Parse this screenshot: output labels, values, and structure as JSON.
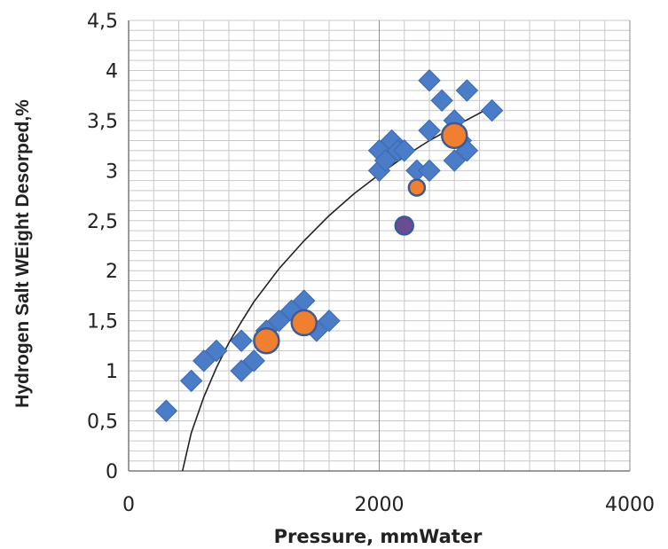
{
  "chart_data": {
    "type": "scatter",
    "title": "",
    "xlabel": "Pressure, mmWater",
    "ylabel": "Hydrogen Salt WEight Desorped,%",
    "xlim": [
      0,
      4000
    ],
    "ylim": [
      0,
      4.5
    ],
    "x_ticks": [
      {
        "value": 0,
        "label": "0"
      },
      {
        "value": 2000,
        "label": "2000"
      },
      {
        "value": 4000,
        "label": "4000"
      }
    ],
    "y_ticks": [
      {
        "value": 0,
        "label": "0"
      },
      {
        "value": 0.5,
        "label": "0,5"
      },
      {
        "value": 1,
        "label": "1"
      },
      {
        "value": 1.5,
        "label": "1,5"
      },
      {
        "value": 2,
        "label": "2"
      },
      {
        "value": 2.5,
        "label": "2,5"
      },
      {
        "value": 3,
        "label": "3"
      },
      {
        "value": 3.5,
        "label": "3,5"
      },
      {
        "value": 4,
        "label": "4"
      },
      {
        "value": 4.5,
        "label": "4,5"
      }
    ],
    "grid": true,
    "legend": "none",
    "series": [
      {
        "marker": "diamond",
        "color": "#4a7cc7",
        "x": [
          300,
          500,
          600,
          700,
          900,
          900,
          1000,
          1100,
          1100,
          1200,
          1300,
          1400,
          1500,
          1600,
          2000,
          2000,
          2050,
          2100,
          2150,
          2200,
          2300,
          2400,
          2400,
          2400,
          2500,
          2600,
          2600,
          2650,
          2700,
          2700,
          2900
        ],
        "y": [
          0.6,
          0.9,
          1.1,
          1.2,
          1.0,
          1.3,
          1.1,
          1.4,
          1.3,
          1.5,
          1.6,
          1.7,
          1.4,
          1.5,
          3.0,
          3.2,
          3.1,
          3.3,
          3.2,
          3.2,
          3.0,
          3.0,
          3.4,
          3.9,
          3.7,
          3.5,
          3.1,
          3.3,
          3.2,
          3.8,
          3.6
        ]
      },
      {
        "marker": "circle",
        "color": "#f08030",
        "x": [
          1100,
          1400,
          2300,
          2600
        ],
        "y": [
          1.3,
          1.48,
          2.83,
          3.35
        ],
        "sizes": [
          14,
          14,
          9,
          14
        ]
      },
      {
        "marker": "circle",
        "color": "#6a4c93",
        "x": [
          2200
        ],
        "y": [
          2.45
        ],
        "sizes": [
          10
        ]
      }
    ],
    "trendline": {
      "type": "logarithmic",
      "color": "#222222",
      "x": [
        430,
        500,
        600,
        700,
        800,
        900,
        1000,
        1200,
        1400,
        1600,
        1800,
        2000,
        2200,
        2400,
        2600,
        2900
      ],
      "y": [
        0.0,
        0.38,
        0.74,
        1.03,
        1.28,
        1.49,
        1.69,
        2.02,
        2.3,
        2.55,
        2.77,
        2.96,
        3.14,
        3.3,
        3.44,
        3.64
      ]
    }
  }
}
